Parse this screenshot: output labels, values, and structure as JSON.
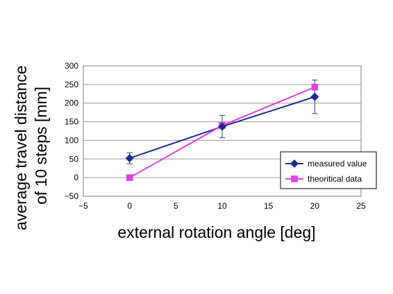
{
  "chart_data": {
    "type": "line",
    "xlabel": "external rotation angle [deg]",
    "ylabel_lines": [
      "average travel distance",
      "of 10 steps [mm]"
    ],
    "xlim": [
      -5,
      25
    ],
    "ylim": [
      -50,
      300
    ],
    "xticks": [
      -5,
      0,
      5,
      10,
      15,
      20,
      25
    ],
    "yticks": [
      -50,
      0,
      50,
      100,
      150,
      200,
      250,
      300
    ],
    "grid": "horizontal",
    "legend_position": "bottom-right",
    "series": [
      {
        "name": "measured value",
        "color": "#1f2a8a",
        "marker": "diamond",
        "x": [
          0,
          10,
          20
        ],
        "y": [
          52,
          137,
          217
        ],
        "error": [
          15,
          30,
          45
        ]
      },
      {
        "name": "theoritical data",
        "color": "#e040e8",
        "marker": "square",
        "x": [
          0,
          10,
          20
        ],
        "y": [
          0,
          140,
          243
        ],
        "error": [
          0,
          0,
          0
        ]
      }
    ]
  }
}
